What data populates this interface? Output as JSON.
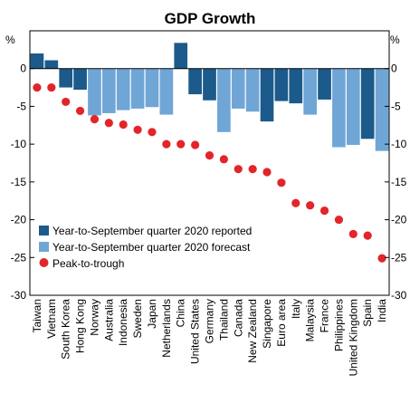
{
  "chart_data": {
    "type": "bar",
    "title": "GDP Growth",
    "ylabel_left": "%",
    "ylabel_right": "%",
    "ylim": [
      -30,
      5
    ],
    "yticks": [
      0,
      -5,
      -10,
      -15,
      -20,
      -25,
      -30
    ],
    "grid": false,
    "legend_position": "bottom-left",
    "categories": [
      "Taiwan",
      "Vietnam",
      "South Korea",
      "Hong Kong",
      "Norway",
      "Australia",
      "Indonesia",
      "Sweden",
      "Japan",
      "Netherlands",
      "China",
      "United States",
      "Germany",
      "Thailand",
      "Canada",
      "New Zealand",
      "Singapore",
      "Euro area",
      "Italy",
      "Malaysia",
      "France",
      "Philippines",
      "United Kingdom",
      "Spain",
      "India"
    ],
    "bars": [
      {
        "value": 2.0,
        "type": "reported"
      },
      {
        "value": 1.1,
        "type": "reported"
      },
      {
        "value": -2.5,
        "type": "reported"
      },
      {
        "value": -2.8,
        "type": "reported"
      },
      {
        "value": -6.2,
        "type": "forecast"
      },
      {
        "value": -5.9,
        "type": "forecast"
      },
      {
        "value": -5.5,
        "type": "forecast"
      },
      {
        "value": -5.3,
        "type": "forecast"
      },
      {
        "value": -5.1,
        "type": "forecast"
      },
      {
        "value": -6.1,
        "type": "forecast"
      },
      {
        "value": 3.4,
        "type": "reported"
      },
      {
        "value": -3.4,
        "type": "reported"
      },
      {
        "value": -4.2,
        "type": "reported"
      },
      {
        "value": -8.4,
        "type": "forecast"
      },
      {
        "value": -5.3,
        "type": "forecast"
      },
      {
        "value": -5.7,
        "type": "forecast"
      },
      {
        "value": -7.0,
        "type": "reported"
      },
      {
        "value": -4.3,
        "type": "reported"
      },
      {
        "value": -4.6,
        "type": "reported"
      },
      {
        "value": -6.1,
        "type": "forecast"
      },
      {
        "value": -4.1,
        "type": "reported"
      },
      {
        "value": -10.4,
        "type": "forecast"
      },
      {
        "value": -10.1,
        "type": "forecast"
      },
      {
        "value": -9.3,
        "type": "reported"
      },
      {
        "value": -10.9,
        "type": "forecast"
      }
    ],
    "series": [
      {
        "name": "Peak-to-trough",
        "type": "scatter",
        "values": [
          -2.5,
          -2.5,
          -4.4,
          -5.6,
          -6.7,
          -7.2,
          -7.4,
          -8.1,
          -8.4,
          -10.0,
          -10.0,
          -10.1,
          -11.5,
          -12.0,
          -13.3,
          -13.3,
          -13.7,
          -15.1,
          -17.8,
          -18.1,
          -18.8,
          -20.0,
          -21.9,
          -22.1,
          -25.1
        ]
      }
    ],
    "legend": {
      "reported": "Year-to-September quarter 2020 reported",
      "forecast": "Year-to-September quarter 2020 forecast",
      "trough": "Peak-to-trough"
    },
    "colors": {
      "reported": "#1b5a8a",
      "forecast": "#6fa6d6",
      "trough": "#e2252b",
      "axis": "#000000"
    }
  }
}
